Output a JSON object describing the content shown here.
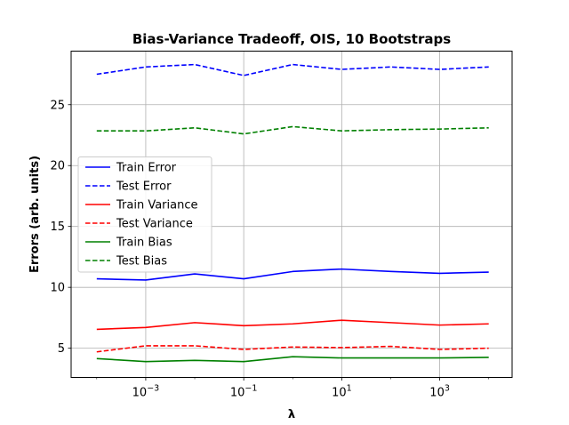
{
  "chart_data": {
    "type": "line",
    "title": "Bias-Variance Tradeoff, OIS, 10 Bootstraps",
    "xlabel": "λ",
    "ylabel": "Errors (arb. units)",
    "xscale": "log",
    "x": [
      0.0001,
      0.001,
      0.01,
      0.1,
      1,
      10,
      100,
      1000,
      10000
    ],
    "xlim": [
      3e-05,
      30000
    ],
    "ylim": [
      2.6,
      29.4
    ],
    "xticks": [
      {
        "value": 0.001,
        "base": "10",
        "exp": "−3"
      },
      {
        "value": 0.1,
        "base": "10",
        "exp": "−1"
      },
      {
        "value": 10,
        "base": "10",
        "exp": "1"
      },
      {
        "value": 1000,
        "base": "10",
        "exp": "3"
      }
    ],
    "yticks": [
      5,
      10,
      15,
      20,
      25
    ],
    "grid": true,
    "legend_position": "center-left",
    "series": [
      {
        "name": "Train Error",
        "color": "#0000ff",
        "dash": "solid",
        "values": [
          10.7,
          10.6,
          11.1,
          10.7,
          11.3,
          11.5,
          11.3,
          11.15,
          11.25
        ]
      },
      {
        "name": "Test Error",
        "color": "#0000ff",
        "dash": "dashed",
        "values": [
          27.5,
          28.1,
          28.3,
          27.4,
          28.3,
          27.9,
          28.1,
          27.9,
          28.1
        ]
      },
      {
        "name": "Train Variance",
        "color": "#ff0000",
        "dash": "solid",
        "values": [
          6.55,
          6.7,
          7.1,
          6.85,
          7.0,
          7.3,
          7.1,
          6.9,
          7.0
        ]
      },
      {
        "name": "Test Variance",
        "color": "#ff0000",
        "dash": "dashed",
        "values": [
          4.7,
          5.2,
          5.2,
          4.9,
          5.1,
          5.05,
          5.15,
          4.9,
          5.0
        ]
      },
      {
        "name": "Train Bias",
        "color": "#008000",
        "dash": "solid",
        "values": [
          4.15,
          3.9,
          4.0,
          3.9,
          4.3,
          4.2,
          4.2,
          4.2,
          4.25
        ]
      },
      {
        "name": "Test Bias",
        "color": "#008000",
        "dash": "dashed",
        "values": [
          22.85,
          22.85,
          23.1,
          22.6,
          23.2,
          22.85,
          22.95,
          23.0,
          23.1
        ]
      }
    ]
  }
}
